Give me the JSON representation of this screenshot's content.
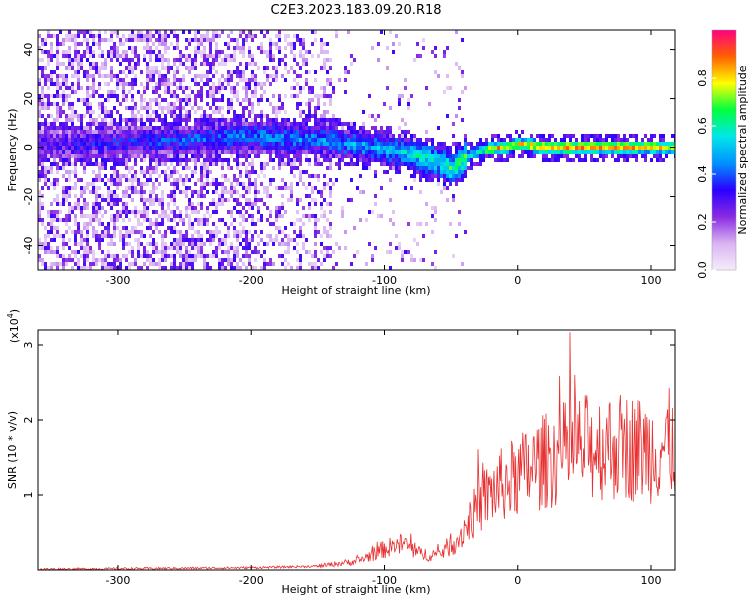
{
  "title": "C2E3.2023.183.09.20.R18",
  "chart_data": [
    {
      "type": "heatmap",
      "xlabel": "Height of straight line (km)",
      "ylabel": "Frequency (Hz)",
      "xlim": [
        -360,
        118
      ],
      "ylim": [
        -50,
        48
      ],
      "x_ticks": [
        -300,
        -200,
        -100,
        0,
        100
      ],
      "x_tick_labels": [
        "-300",
        "-200",
        "-100",
        "0",
        "100"
      ],
      "y_ticks": [
        -40,
        -20,
        0,
        20,
        40
      ],
      "y_tick_labels": [
        "-40",
        "-20",
        "0",
        "20",
        "40"
      ],
      "colorbar": {
        "label": "Normalized spectral amplitude",
        "range": [
          0,
          1
        ],
        "ticks": [
          0.0,
          0.2,
          0.4,
          0.6,
          0.8
        ],
        "tick_labels": [
          "0.0",
          "0.2",
          "0.4",
          "0.6",
          "0.8"
        ],
        "colors": [
          "#f6ecfb",
          "#d9b3f2",
          "#8a2be2",
          "#2a00ff",
          "#0090ff",
          "#00e8e8",
          "#00ff40",
          "#ffff00",
          "#ff6000",
          "#ff0080"
        ]
      },
      "ridge": {
        "x": [
          -360,
          -300,
          -250,
          -200,
          -150,
          -100,
          -80,
          -60,
          -50,
          -40,
          -25,
          -10,
          0,
          20,
          50,
          80,
          118
        ],
        "y": [
          2,
          3,
          4,
          5,
          4,
          0,
          -2,
          -5,
          -8,
          -3,
          0,
          1,
          2,
          1,
          1,
          1,
          1
        ],
        "amplitude": [
          0.3,
          0.35,
          0.4,
          0.45,
          0.45,
          0.5,
          0.55,
          0.6,
          0.65,
          0.7,
          0.8,
          0.85,
          0.85,
          0.9,
          0.9,
          0.9,
          0.8
        ]
      }
    },
    {
      "type": "line",
      "xlabel": "Height of straight line (km)",
      "ylabel": "SNR (10 * v/v)",
      "y_multiplier_label": "(x10",
      "y_multiplier_exp": "4",
      "xlim": [
        -360,
        118
      ],
      "ylim": [
        0,
        3.2
      ],
      "x_ticks": [
        -300,
        -200,
        -100,
        0,
        100
      ],
      "x_tick_labels": [
        "-300",
        "-200",
        "-100",
        "0",
        "100"
      ],
      "y_ticks": [
        1,
        2,
        3
      ],
      "y_tick_labels": [
        "1",
        "2",
        "3"
      ],
      "series": [
        {
          "color": "#e83030",
          "envelope_x": [
            -360,
            -200,
            -150,
            -120,
            -100,
            -85,
            -75,
            -60,
            -45,
            -35,
            -25,
            -15,
            0,
            20,
            40,
            60,
            80,
            100,
            118
          ],
          "envelope_y": [
            0.01,
            0.03,
            0.05,
            0.12,
            0.28,
            0.35,
            0.22,
            0.2,
            0.4,
            0.7,
            0.95,
            1.1,
            1.25,
            1.45,
            1.6,
            1.65,
            1.65,
            1.6,
            1.7
          ]
        }
      ]
    }
  ]
}
